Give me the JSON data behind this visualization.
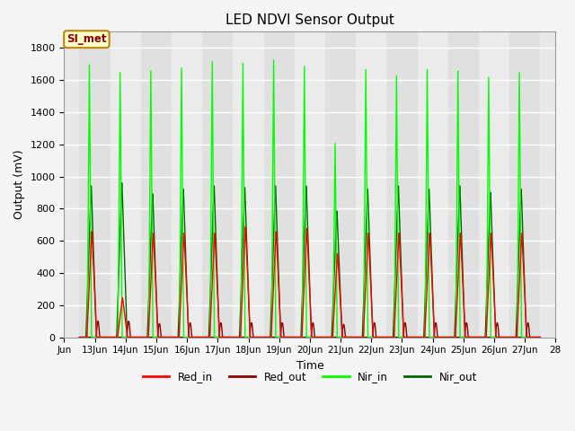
{
  "title": "LED NDVI Sensor Output",
  "xlabel": "Time",
  "ylabel": "Output (mV)",
  "ylim": [
    0,
    1900
  ],
  "background_color": "#f5f5f5",
  "plot_bg_color": "#e8e8e8",
  "grid_color": "#ffffff",
  "series": {
    "Red_in": {
      "color": "#ff0000",
      "lw": 1.0
    },
    "Red_out": {
      "color": "#8b0000",
      "lw": 1.0
    },
    "Nir_in": {
      "color": "#00ff00",
      "lw": 1.0
    },
    "Nir_out": {
      "color": "#006400",
      "lw": 1.0
    }
  },
  "nir_in_peaks": [
    1730,
    1680,
    1690,
    1710,
    1750,
    1740,
    1760,
    1720,
    1230,
    1700,
    1660,
    1700,
    1690,
    1650,
    1680
  ],
  "nir_out_peaks": [
    960,
    980,
    910,
    940,
    960,
    950,
    960,
    960,
    800,
    940,
    960,
    940,
    960,
    920,
    940
  ],
  "red_in_peaks": [
    670,
    250,
    660,
    660,
    660,
    700,
    670,
    690,
    530,
    660,
    660,
    660,
    660,
    660,
    660
  ],
  "red_out_peaks": [
    100,
    100,
    85,
    90,
    90,
    90,
    90,
    90,
    80,
    90,
    90,
    90,
    90,
    90,
    90
  ],
  "tick_labels": [
    "Jun",
    "13Jun",
    "14Jun",
    "15Jun",
    "16Jun",
    "17Jun",
    "18Jun",
    "19Jun",
    "20Jun",
    "21Jun",
    "22Jun",
    "23Jun",
    "24Jun",
    "25Jun",
    "26Jun",
    "27Jun",
    "28"
  ],
  "annotation_text": "SI_met",
  "yticks": [
    0,
    200,
    400,
    600,
    800,
    1000,
    1200,
    1400,
    1600,
    1800
  ],
  "n_days": 15
}
